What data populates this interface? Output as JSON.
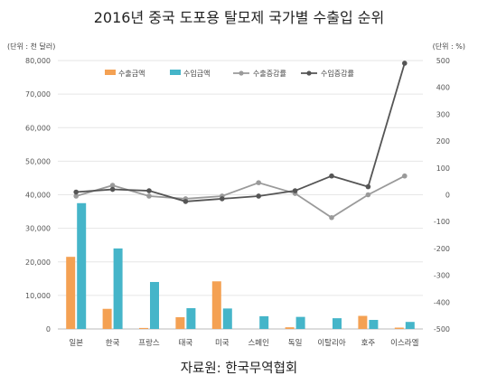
{
  "title": "2016년 중국 도포용 탈모제 국가별 수출입 순위",
  "unit_left": "(단위 : 천 달러)",
  "unit_right": "(단위 : %)",
  "source": "자료원: 한국무역협회",
  "colors": {
    "export": "#f4a153",
    "import": "#45b5c9",
    "export_growth": "#9a9a9a",
    "import_growth": "#555555"
  },
  "chart_data": {
    "type": "bar",
    "title": "2016년 중국 도포용 탈모제 국가별 수출입 순위",
    "categories": [
      "일본",
      "한국",
      "프랑스",
      "태국",
      "미국",
      "스페인",
      "독일",
      "이탈리아",
      "호주",
      "이스라엘"
    ],
    "y_left": {
      "ylim": [
        0,
        80000
      ],
      "ticks": [
        "0",
        "10,000",
        "20,000",
        "30,000",
        "40,000",
        "50,000",
        "60,000",
        "70,000",
        "80,000"
      ]
    },
    "y_right": {
      "ylim": [
        -500,
        500
      ],
      "ticks": [
        "-500",
        "-400",
        "-300",
        "-200",
        "-100",
        "0",
        "100",
        "200",
        "300",
        "400",
        "500"
      ]
    },
    "legend_placement": "top-center",
    "series": [
      {
        "name": "수출금액",
        "kind": "bar",
        "axis": "left",
        "values": [
          21500,
          6000,
          300,
          3500,
          14200,
          0,
          500,
          0,
          3900,
          400
        ]
      },
      {
        "name": "수입금액",
        "kind": "bar",
        "axis": "left",
        "values": [
          37500,
          24000,
          14000,
          6200,
          6100,
          3800,
          3600,
          3200,
          2700,
          2100
        ]
      },
      {
        "name": "수출증감률",
        "kind": "line",
        "axis": "right",
        "values": [
          -5,
          35,
          -5,
          -15,
          -5,
          45,
          5,
          -85,
          0,
          70
        ]
      },
      {
        "name": "수입증감률",
        "kind": "line",
        "axis": "right",
        "values": [
          10,
          20,
          15,
          -25,
          -15,
          -5,
          15,
          70,
          30,
          490
        ]
      }
    ]
  }
}
